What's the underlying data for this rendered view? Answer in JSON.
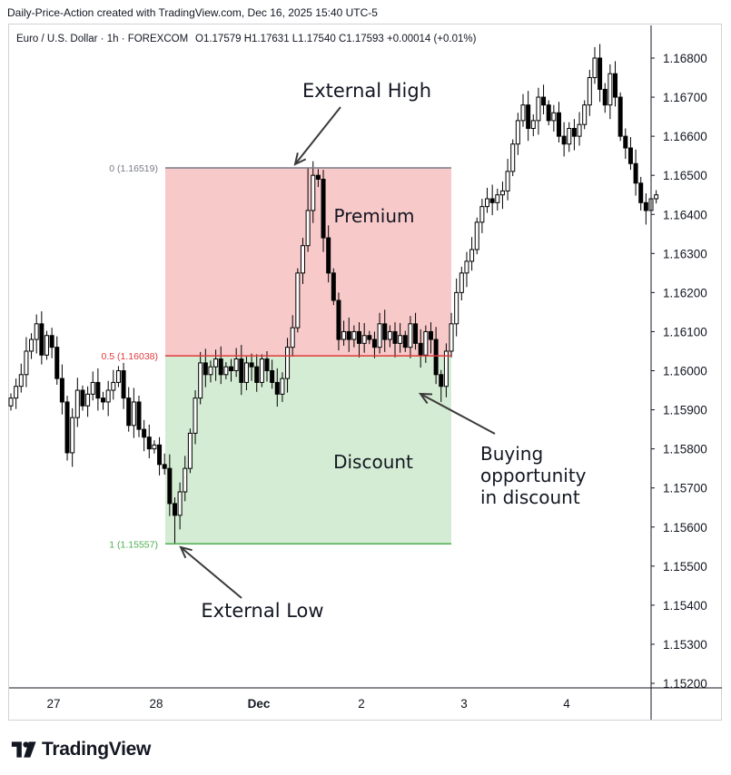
{
  "watermark": "Daily-Price-Action created with TradingView.com, Dec 16, 2025 15:40 UTC-5",
  "legend": {
    "symbol": "Euro / U.S. Dollar · 1h · FOREXCOM",
    "ohlc": "O1.17579  H1.17631  L1.17540  C1.17593  +0.00014 (+0.01%)"
  },
  "brand": {
    "name": "TradingView"
  },
  "chart_data": {
    "type": "candlestick",
    "title": "Euro / U.S. Dollar · 1h · FOREXCOM",
    "y_range": [
      1.1515,
      1.1688
    ],
    "y_ticks": [
      "1.16800",
      "1.16700",
      "1.16600",
      "1.16500",
      "1.16400",
      "1.16300",
      "1.16200",
      "1.16100",
      "1.16000",
      "1.15900",
      "1.15800",
      "1.15700",
      "1.15600",
      "1.15500",
      "1.15400",
      "1.15300",
      "1.15200"
    ],
    "x_ticks": [
      "27",
      "28",
      "Dec",
      "2",
      "3",
      "4"
    ],
    "fib_levels": [
      {
        "label": "0 (1.16519)",
        "value": 1.16519,
        "color": "#787b86"
      },
      {
        "label": "0.5 (1.16038)",
        "value": 1.16038,
        "color": "#e0393b"
      },
      {
        "label": "1 (1.15557)",
        "value": 1.15557,
        "color": "#4caf50"
      }
    ],
    "zones": [
      {
        "name": "Premium",
        "from": 1.16038,
        "to": 1.16519,
        "color": "#f8c9c9"
      },
      {
        "name": "Discount",
        "from": 1.15557,
        "to": 1.16038,
        "color": "#d4ecd3"
      }
    ],
    "annotations": {
      "external_high": "External High",
      "external_low": "External Low",
      "premium": "Premium",
      "discount": "Discount",
      "buying": [
        "Buying",
        "opportunity",
        "in discount"
      ]
    },
    "closes": [
      1.1593,
      1.1596,
      1.1599,
      1.1605,
      1.1608,
      1.1612,
      1.1604,
      1.1609,
      1.1606,
      1.1598,
      1.1592,
      1.1579,
      1.1588,
      1.1595,
      1.1591,
      1.1594,
      1.1597,
      1.1593,
      1.1592,
      1.1595,
      1.1597,
      1.16,
      1.1593,
      1.1586,
      1.1592,
      1.1585,
      1.1583,
      1.158,
      1.1581,
      1.1576,
      1.1575,
      1.1566,
      1.1563,
      1.1569,
      1.1575,
      1.1584,
      1.1593,
      1.1602,
      1.1599,
      1.1601,
      1.1603,
      1.1599,
      1.1601,
      1.16,
      1.1603,
      1.1597,
      1.1602,
      1.1601,
      1.1597,
      1.1603,
      1.16,
      1.1597,
      1.1594,
      1.1598,
      1.1606,
      1.1611,
      1.1625,
      1.1632,
      1.1641,
      1.165,
      1.1649,
      1.1634,
      1.1625,
      1.1618,
      1.1608,
      1.161,
      1.1608,
      1.161,
      1.1607,
      1.1609,
      1.1608,
      1.1606,
      1.1612,
      1.1608,
      1.161,
      1.1607,
      1.1609,
      1.1606,
      1.1612,
      1.1607,
      1.1604,
      1.161,
      1.1608,
      1.1599,
      1.1596,
      1.1605,
      1.1612,
      1.162,
      1.1625,
      1.1628,
      1.1631,
      1.1638,
      1.1642,
      1.1644,
      1.1643,
      1.1645,
      1.1646,
      1.1651,
      1.1658,
      1.1664,
      1.1668,
      1.1662,
      1.1664,
      1.167,
      1.1668,
      1.1664,
      1.1666,
      1.166,
      1.1658,
      1.1662,
      1.166,
      1.1663,
      1.1668,
      1.1675,
      1.168,
      1.1672,
      1.1668,
      1.1676,
      1.167,
      1.166,
      1.1657,
      1.1653,
      1.1648,
      1.1643,
      1.1641,
      1.1644,
      1.1645
    ],
    "extremes": [
      {
        "bar": 32,
        "low": 1.15557
      },
      {
        "bar": 58,
        "high": 1.16519
      },
      {
        "bar": 84,
        "low": 1.1592
      }
    ]
  }
}
